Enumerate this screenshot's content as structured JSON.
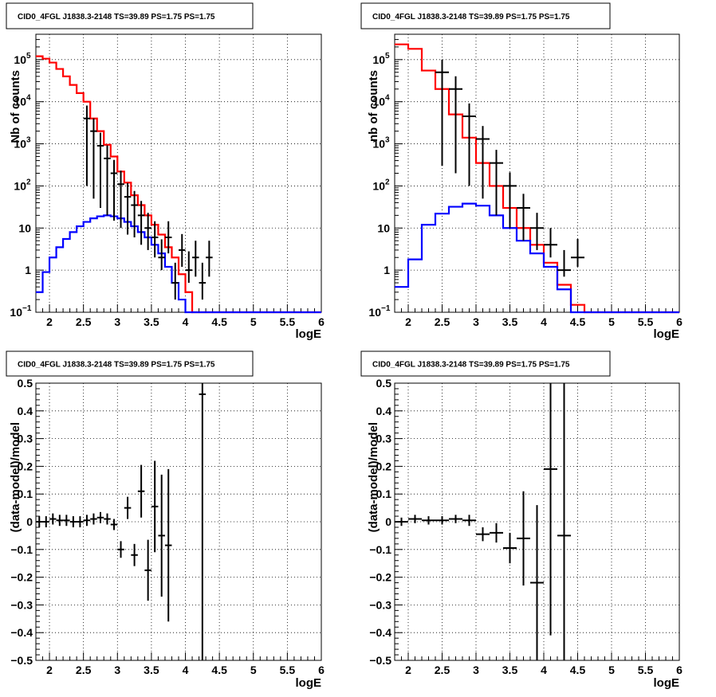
{
  "chart_data": [
    {
      "type": "line",
      "title": "CID0_4FGL J1838.3-2148 TS=39.89 PS=1.75 PS=1.75",
      "xlabel": "logE",
      "ylabel": "Nb of counts",
      "xlim": [
        1.8,
        6.0
      ],
      "ylim": [
        0.1,
        400000
      ],
      "yscale": "log",
      "grid": true,
      "xticks": [
        "2",
        "2.5",
        "3",
        "3.5",
        "4",
        "4.5",
        "5",
        "5.5",
        "6"
      ],
      "x_edges": [
        1.8,
        1.9,
        2.0,
        2.1,
        2.2,
        2.3,
        2.4,
        2.5,
        2.6,
        2.7,
        2.8,
        2.9,
        3.0,
        3.1,
        3.2,
        3.3,
        3.4,
        3.5,
        3.6,
        3.7,
        3.8,
        3.9,
        4.0,
        4.1,
        4.2,
        4.3,
        4.4,
        4.5,
        4.6,
        4.7,
        4.8,
        4.9,
        5.0,
        5.1,
        5.2,
        5.3,
        5.4,
        5.5,
        5.6,
        5.7,
        5.8,
        5.9,
        6.0
      ],
      "series": [
        {
          "color": "#ff0000",
          "style": "step",
          "values": [
            120000,
            105000,
            85000,
            60000,
            40000,
            25000,
            16000,
            10000,
            4000,
            2000,
            950,
            500,
            220,
            120,
            60,
            35,
            20,
            12,
            7,
            3.5,
            2,
            0.8,
            0.3,
            0.1,
            0.1,
            0.1,
            0.1,
            0.1,
            0.1,
            0.1,
            0.1,
            0.1,
            0.1,
            0.1,
            0.1,
            0.1,
            0.1,
            0.1,
            0.1,
            0.1,
            0.1,
            0.1
          ]
        },
        {
          "color": "#0000ff",
          "style": "step",
          "values": [
            0.3,
            0.9,
            2,
            3.5,
            5.5,
            8,
            11,
            14,
            17,
            19,
            20,
            19,
            17,
            14,
            11,
            8,
            6,
            4,
            2.5,
            1.2,
            0.5,
            0.2,
            0.1,
            0.1,
            0.1,
            0.1,
            0.1,
            0.1,
            0.1,
            0.1,
            0.1,
            0.1,
            0.1,
            0.1,
            0.1,
            0.1,
            0.1,
            0.1,
            0.1,
            0.1,
            0.1,
            0.1
          ]
        },
        {
          "color": "#000000",
          "style": "points",
          "x": [
            2.55,
            2.65,
            2.75,
            2.85,
            2.95,
            3.05,
            3.15,
            3.25,
            3.35,
            3.45,
            3.55,
            3.65,
            3.75,
            3.85,
            3.95,
            4.05,
            4.15,
            4.25,
            4.35
          ],
          "values": [
            4000,
            2000,
            900,
            450,
            200,
            110,
            55,
            35,
            20,
            10,
            6,
            2,
            6,
            0.5,
            3,
            1,
            2,
            0.5,
            2
          ],
          "err_lo": [
            3900,
            1950,
            870,
            430,
            185,
            100,
            48,
            29,
            16,
            7,
            4,
            1,
            3.5,
            0.3,
            1.8,
            0.5,
            1.3,
            0.3,
            1.3
          ],
          "err_hi": [
            4100,
            2050,
            930,
            470,
            215,
            120,
            62,
            41,
            24,
            13,
            8.5,
            3.4,
            8.5,
            1,
            4.2,
            1.8,
            3,
            1,
            3
          ]
        }
      ]
    },
    {
      "type": "line",
      "title": "CID0_4FGL J1838.3-2148 TS=39.89 PS=1.75 PS=1.75",
      "xlabel": "logE",
      "ylabel": "nb of counts",
      "xlim": [
        1.8,
        6.0
      ],
      "ylim": [
        0.1,
        400000
      ],
      "yscale": "log",
      "grid": true,
      "xticks": [
        "2",
        "2.5",
        "3",
        "3.5",
        "4",
        "4.5",
        "5",
        "5.5",
        "6"
      ],
      "x_edges": [
        1.8,
        2.0,
        2.2,
        2.4,
        2.6,
        2.8,
        3.0,
        3.2,
        3.4,
        3.6,
        3.8,
        4.0,
        4.2,
        4.4,
        4.6,
        4.8,
        5.0,
        5.2,
        5.4,
        5.6,
        5.8,
        6.0
      ],
      "series": [
        {
          "color": "#ff0000",
          "style": "step",
          "values": [
            230000,
            180000,
            55000,
            20000,
            5000,
            1400,
            350,
            100,
            30,
            10,
            4,
            1.5,
            0.45,
            0.15,
            0.1,
            0.1,
            0.1,
            0.1,
            0.1,
            0.1,
            0.1
          ]
        },
        {
          "color": "#0000ff",
          "style": "step",
          "values": [
            0.4,
            1.8,
            12,
            22,
            32,
            38,
            34,
            20,
            10,
            5,
            2.5,
            1.2,
            0.35,
            0.1,
            0.1,
            0.1,
            0.1,
            0.1,
            0.1,
            0.1,
            0.1
          ]
        },
        {
          "color": "#000000",
          "style": "points",
          "x": [
            2.5,
            2.7,
            2.9,
            3.1,
            3.3,
            3.5,
            3.7,
            3.9,
            4.1,
            4.3,
            4.5
          ],
          "values": [
            50000,
            20000,
            4500,
            1300,
            350,
            100,
            30,
            10,
            4,
            1,
            2
          ],
          "err_lo": [
            49700,
            19800,
            4400,
            1250,
            330,
            90,
            25,
            7,
            2,
            0.3,
            0.8
          ],
          "err_hi": [
            50300,
            20200,
            4600,
            1350,
            370,
            110,
            35,
            13,
            6,
            2,
            3.5
          ]
        }
      ]
    },
    {
      "type": "scatter",
      "title": "CID0_4FGL J1838.3-2148 TS=39.89 PS=1.75 PS=1.75",
      "xlabel": "logE",
      "ylabel": "(data-model)/model",
      "xlim": [
        1.8,
        6.0
      ],
      "ylim": [
        -0.5,
        0.5
      ],
      "grid": true,
      "xticks": [
        "2",
        "2.5",
        "3",
        "3.5",
        "4",
        "4.5",
        "5",
        "5.5",
        "6"
      ],
      "yticks": [
        "−0.5",
        "−0.4",
        "−0.3",
        "−0.2",
        "−0.1",
        "0",
        "0.1",
        "0.2",
        "0.3",
        "0.4",
        "0.5"
      ],
      "points": {
        "x": [
          1.85,
          1.95,
          2.05,
          2.15,
          2.25,
          2.35,
          2.45,
          2.55,
          2.65,
          2.75,
          2.85,
          2.95,
          3.05,
          3.15,
          3.25,
          3.35,
          3.45,
          3.55,
          3.65,
          3.75,
          4.25
        ],
        "y": [
          0.0,
          0.0,
          0.01,
          0.005,
          0.005,
          0.0,
          0.0,
          0.005,
          0.01,
          0.015,
          0.01,
          -0.01,
          -0.1,
          0.05,
          -0.12,
          0.11,
          -0.175,
          0.055,
          -0.05,
          -0.085,
          0.46
        ],
        "err": [
          0.02,
          0.02,
          0.02,
          0.02,
          0.02,
          0.02,
          0.02,
          0.02,
          0.02,
          0.02,
          0.02,
          0.02,
          0.03,
          0.04,
          0.04,
          0.095,
          0.11,
          0.165,
          0.22,
          0.275,
          1.0
        ]
      }
    },
    {
      "type": "scatter",
      "title": "CID0_4FGL J1838.3-2148 TS=39.89 PS=1.75 PS=1.75",
      "xlabel": "logE",
      "ylabel": "(data-model)/model",
      "xlim": [
        1.8,
        6.0
      ],
      "ylim": [
        -0.5,
        0.5
      ],
      "grid": true,
      "xticks": [
        "2",
        "2.5",
        "3",
        "3.5",
        "4",
        "4.5",
        "5",
        "5.5",
        "6"
      ],
      "yticks": [
        "−0.5",
        "−0.4",
        "−0.3",
        "−0.2",
        "−0.1",
        "0",
        "0.1",
        "0.2",
        "0.3",
        "0.4",
        "0.5"
      ],
      "points": {
        "x": [
          1.9,
          2.1,
          2.3,
          2.5,
          2.7,
          2.9,
          3.1,
          3.3,
          3.5,
          3.7,
          3.9,
          4.1,
          4.3
        ],
        "y": [
          0.0,
          0.01,
          0.005,
          0.005,
          0.01,
          0.005,
          -0.045,
          -0.04,
          -0.095,
          -0.06,
          -0.22,
          0.19,
          -0.05
        ],
        "err": [
          0.015,
          0.015,
          0.015,
          0.015,
          0.015,
          0.02,
          0.025,
          0.035,
          0.055,
          0.17,
          0.28,
          0.6,
          0.9
        ]
      }
    }
  ]
}
